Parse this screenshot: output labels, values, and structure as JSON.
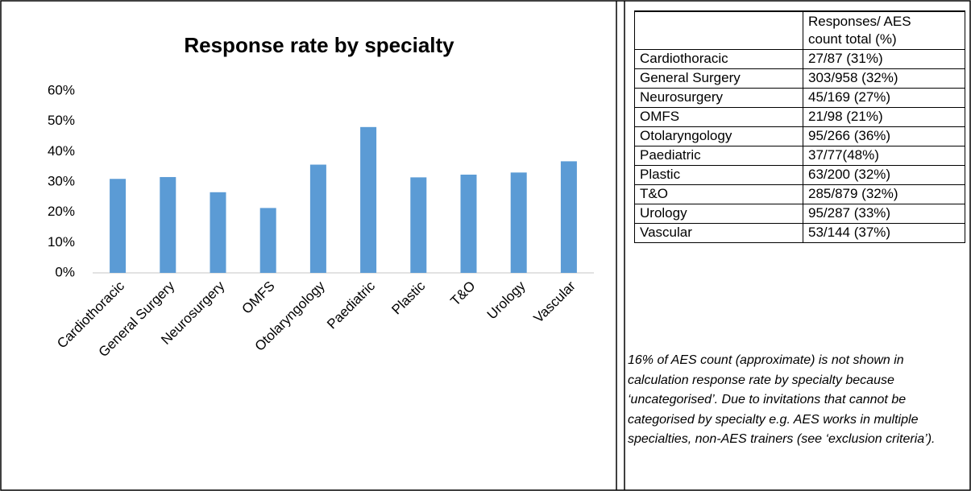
{
  "chart_data": {
    "type": "bar",
    "title": "Response rate by specialty",
    "categories": [
      "Cardiothoracic",
      "General Surgery",
      "Neurosurgery",
      "OMFS",
      "Otolaryngology",
      "Paediatric",
      "Plastic",
      "T&O",
      "Urology",
      "Vascular"
    ],
    "values": [
      31.0,
      31.6,
      26.6,
      21.4,
      35.7,
      48.1,
      31.5,
      32.4,
      33.1,
      36.8
    ],
    "color": "#5b9bd5",
    "ylim": [
      0,
      60
    ],
    "yticks": [
      {
        "value": 0,
        "label": "0%"
      },
      {
        "value": 10,
        "label": "10%"
      },
      {
        "value": 20,
        "label": "20%"
      },
      {
        "value": 30,
        "label": "30%"
      },
      {
        "value": 40,
        "label": "40%"
      },
      {
        "value": 50,
        "label": "50%"
      },
      {
        "value": 60,
        "label": "60%"
      }
    ],
    "grid": false
  },
  "table": {
    "header": [
      "",
      "Responses/ AES count total (%)"
    ],
    "rows": [
      [
        "Cardiothoracic",
        "27/87 (31%)"
      ],
      [
        "General Surgery",
        "303/958 (32%)"
      ],
      [
        "Neurosurgery",
        "45/169 (27%)"
      ],
      [
        "OMFS",
        "21/98 (21%)"
      ],
      [
        "Otolaryngology",
        "95/266 (36%)"
      ],
      [
        "Paediatric",
        "37/77(48%)"
      ],
      [
        "Plastic",
        "63/200 (32%)"
      ],
      [
        "T&O",
        "285/879 (32%)"
      ],
      [
        "Urology",
        "95/287 (33%)"
      ],
      [
        "Vascular",
        "53/144 (37%)"
      ]
    ]
  },
  "note": "16% of AES count (approximate) is not shown in calculation response rate by specialty because ‘uncategorised’. Due to invitations that cannot be categorised by specialty e.g. AES works in multiple specialties, non-AES trainers (see ‘exclusion criteria’)."
}
